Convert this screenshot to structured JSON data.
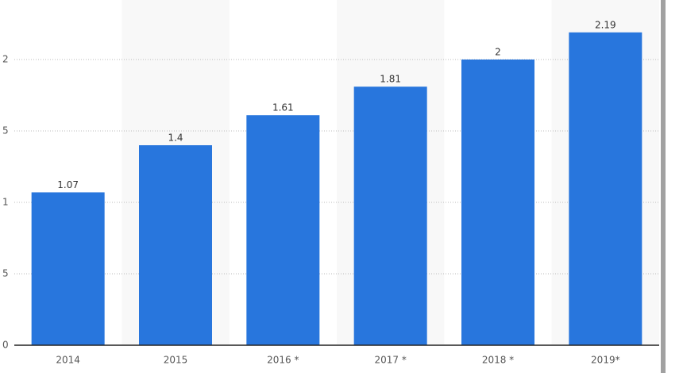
{
  "chart_data": {
    "type": "bar",
    "categories": [
      "2014",
      "2015",
      "2016 *",
      "2017 *",
      "2018 *",
      "2019*"
    ],
    "values": [
      1.07,
      1.4,
      1.61,
      1.81,
      2,
      2.19
    ],
    "color": "#2876dd",
    "ylim": [
      0,
      2.4
    ],
    "yticks": [
      0,
      {
        "value": 0.5,
        "label": "5"
      },
      1,
      {
        "value": 1.5,
        "label": "5"
      },
      2
    ],
    "grid": true
  }
}
